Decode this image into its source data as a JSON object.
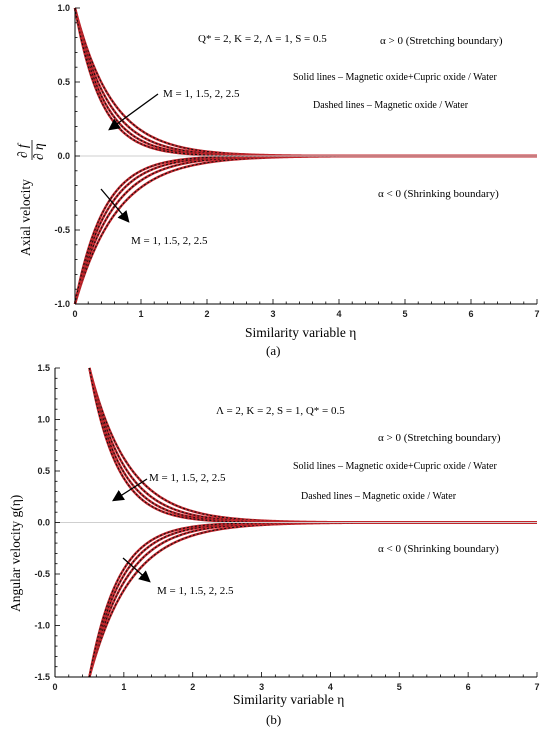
{
  "colors": {
    "solid_curve": "#c2272d",
    "dashed_curve": "#111111",
    "axis": "#000000",
    "zero_line": "#cfcfcf"
  },
  "chart_data": [
    {
      "type": "line",
      "panel_label": "(a)",
      "xlabel": "Similarity variable η",
      "ylabel": "Axial velocity ∂f/∂η",
      "ylabel_parts": {
        "text": "Axial velocity",
        "numerator": "∂ f",
        "denominator": "∂ η"
      },
      "xlim": [
        0,
        7
      ],
      "ylim": [
        -1,
        1
      ],
      "x_ticks": [
        "0",
        "1",
        "2",
        "3",
        "4",
        "5",
        "6",
        "7"
      ],
      "y_ticks": [
        "1.0",
        "0.5",
        "0.0",
        "-0.5",
        "-1.0"
      ],
      "y_tick_values": [
        1.0,
        0.5,
        0.0,
        -0.5,
        -1.0
      ],
      "parameters_text": "Q* = 2,  K = 2,  Λ = 1, S = 0.5",
      "annotations": {
        "upper": "α > 0 (Stretching boundary)",
        "lower": "α < 0 (Shrinking boundary)",
        "solid": "Solid lines – Magnetic oxide+Cupric oxide / Water",
        "dashed": "Dashed lines – Magnetic oxide / Water",
        "arrow_upper": "M = 1, 1.5, 2, 2.5",
        "arrow_lower": "M = 1, 1.5, 2, 2.5"
      },
      "M_values": [
        1,
        1.5,
        2,
        2.5
      ],
      "curves": {
        "stretching": {
          "start": 1.0,
          "decay_rates": [
            1.75,
            2.0,
            2.25,
            2.5
          ]
        },
        "shrinking": {
          "start": -1.0,
          "decay_rates": [
            1.55,
            1.8,
            2.05,
            2.3
          ]
        }
      }
    },
    {
      "type": "line",
      "panel_label": "(b)",
      "xlabel": "Similarity variable η",
      "ylabel": "Angular velocity g(η)",
      "xlim": [
        0,
        7
      ],
      "ylim": [
        -1.5,
        1.5
      ],
      "x_ticks": [
        "0",
        "1",
        "2",
        "3",
        "4",
        "5",
        "6",
        "7"
      ],
      "y_ticks": [
        "1.5",
        "1.0",
        "0.5",
        "0.0",
        "-0.5",
        "-1.0",
        "-1.5"
      ],
      "y_tick_values": [
        1.5,
        1.0,
        0.5,
        0.0,
        -0.5,
        -1.0,
        -1.5
      ],
      "parameters_text": "Λ = 2,  K = 2,  S = 1,  Q* = 0.5",
      "annotations": {
        "upper": "α > 0 (Stretching boundary)",
        "lower": "α < 0 (Shrinking boundary)",
        "solid": "Solid lines – Magnetic oxide+Cupric oxide / Water",
        "dashed": "Dashed lines – Magnetic oxide / Water",
        "arrow_upper": "M  = 1, 1.5, 2, 2.5",
        "arrow_lower": "M = 1, 1.5, 2, 2.5"
      },
      "M_values": [
        1,
        1.5,
        2,
        2.5
      ],
      "curves": {
        "stretching": {
          "start": 1.5,
          "x_start": 0.5,
          "decay_rates": [
            1.75,
            2.0,
            2.25,
            2.5
          ]
        },
        "shrinking": {
          "start": -1.5,
          "x_start": 0.5,
          "decay_rates": [
            1.65,
            1.9,
            2.15,
            2.4
          ]
        }
      }
    }
  ]
}
